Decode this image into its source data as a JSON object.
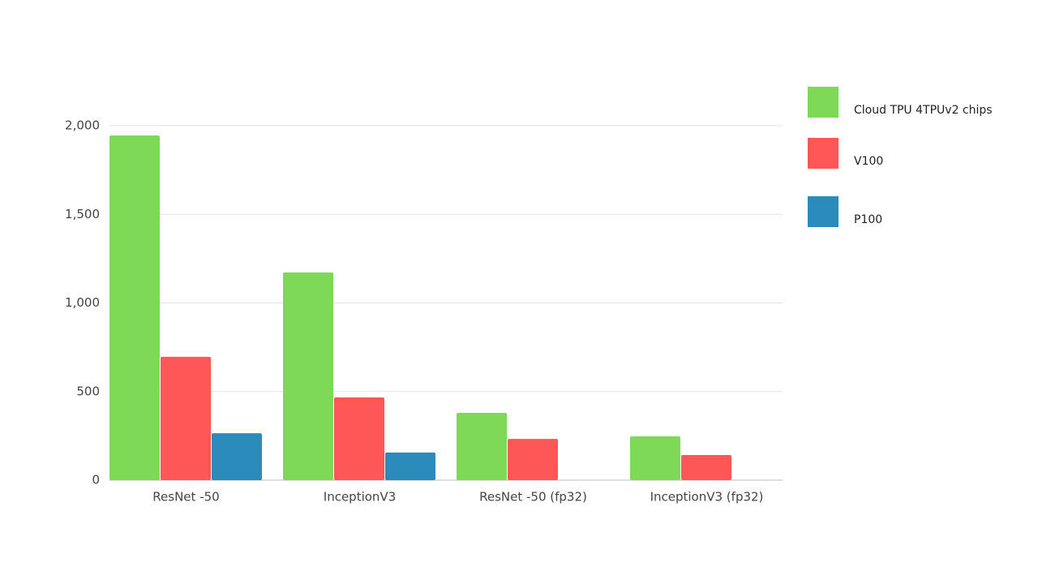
{
  "chart_data": {
    "type": "bar",
    "categories": [
      "ResNet -50",
      "InceptionV3",
      "ResNet -50 (fp32)",
      "InceptionV3 (fp32)"
    ],
    "series": [
      {
        "name": "Cloud TPU 4TPUv2 chips",
        "color": "#7ed957",
        "values": [
          1945,
          1172,
          380,
          247
        ]
      },
      {
        "name": "V100",
        "color": "#ff5757",
        "values": [
          696,
          467,
          233,
          142
        ]
      },
      {
        "name": "P100",
        "color": "#2b8bba",
        "values": [
          265,
          156,
          null,
          null
        ]
      }
    ],
    "ylim": [
      0,
      2000
    ],
    "yticks": [
      0,
      500,
      {
        "value": 1000,
        "label": "1,000"
      },
      {
        "value": 1500,
        "label": "1,500"
      },
      {
        "value": 2000,
        "label": "2,000"
      }
    ],
    "grid": true,
    "legend": "right"
  }
}
